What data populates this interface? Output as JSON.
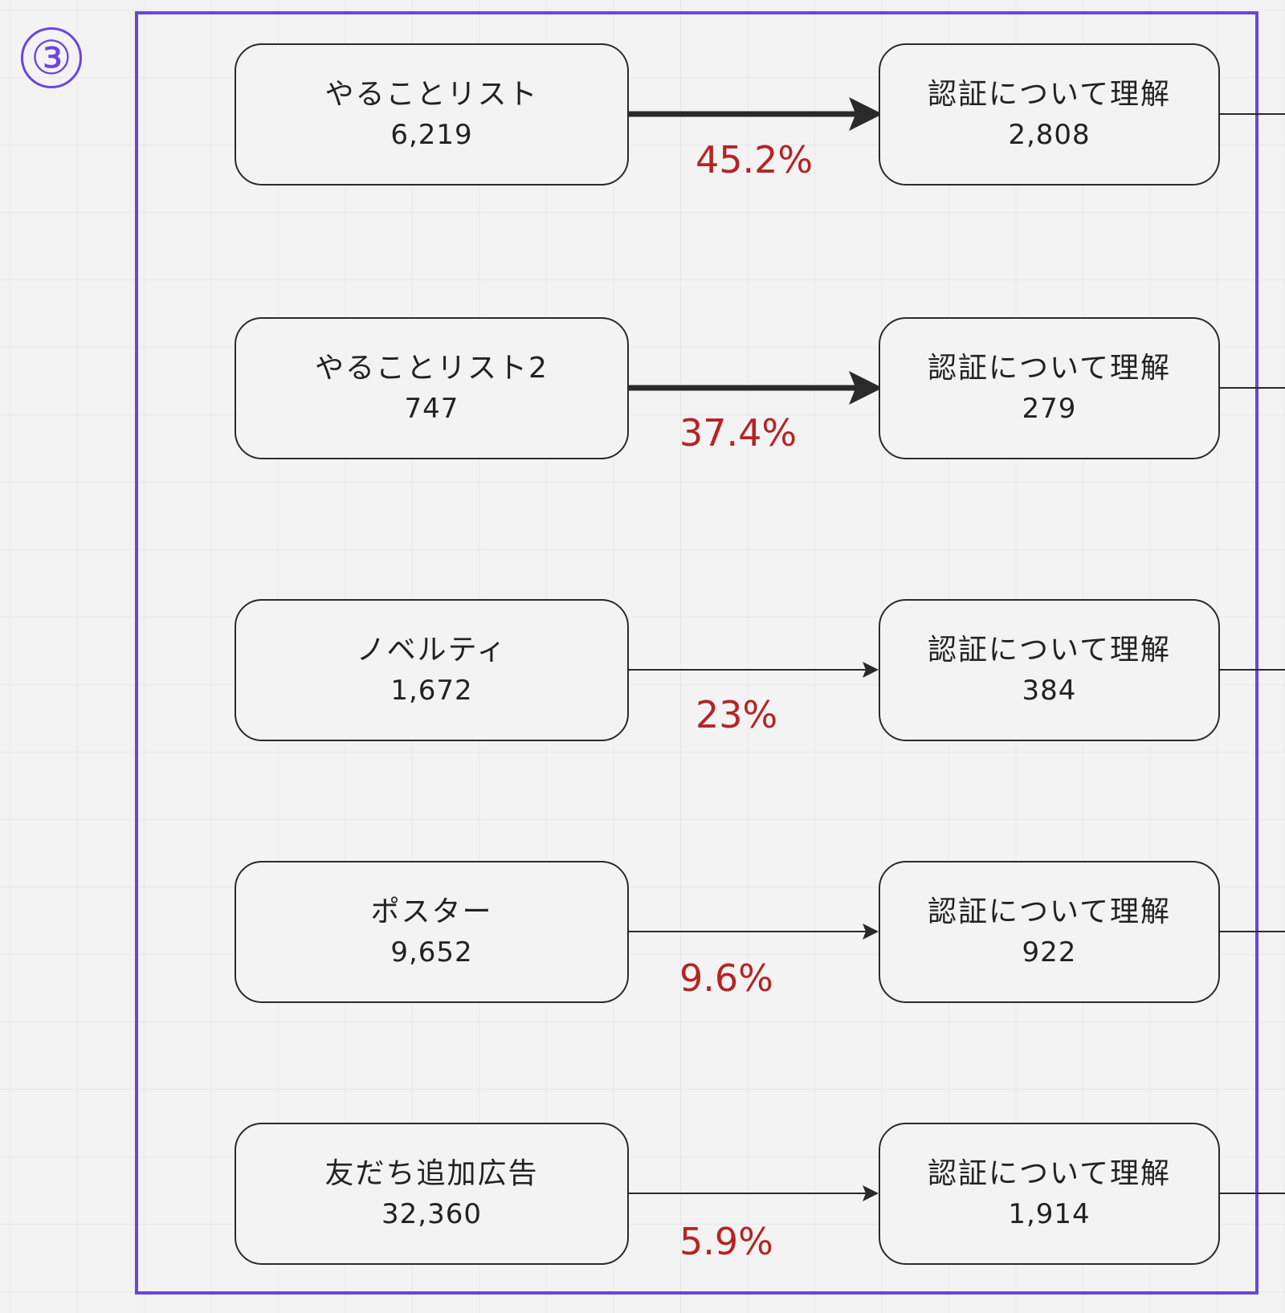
{
  "frame": {
    "badge": "③",
    "border_color": "#6a45e0"
  },
  "rows": [
    {
      "source_label": "やることリスト",
      "source_count": "6,219",
      "target_label": "認証について理解",
      "target_count": "2,808",
      "rate": "45.2%",
      "arrow": "thick"
    },
    {
      "source_label": "やることリスト2",
      "source_count": "747",
      "target_label": "認証について理解",
      "target_count": "279",
      "rate": "37.4%",
      "arrow": "thick"
    },
    {
      "source_label": "ノベルティ",
      "source_count": "1,672",
      "target_label": "認証について理解",
      "target_count": "384",
      "rate": "23%",
      "arrow": "thin"
    },
    {
      "source_label": "ポスター",
      "source_count": "9,652",
      "target_label": "認証について理解",
      "target_count": "922",
      "rate": "9.6%",
      "arrow": "thin"
    },
    {
      "source_label": "友だち追加広告",
      "source_count": "32,360",
      "target_label": "認証について理解",
      "target_count": "1,914",
      "rate": "5.9%",
      "arrow": "thin"
    }
  ],
  "colors": {
    "rate": "#b52424",
    "stroke": "#2a2a2a",
    "frame": "#6a45e0"
  }
}
